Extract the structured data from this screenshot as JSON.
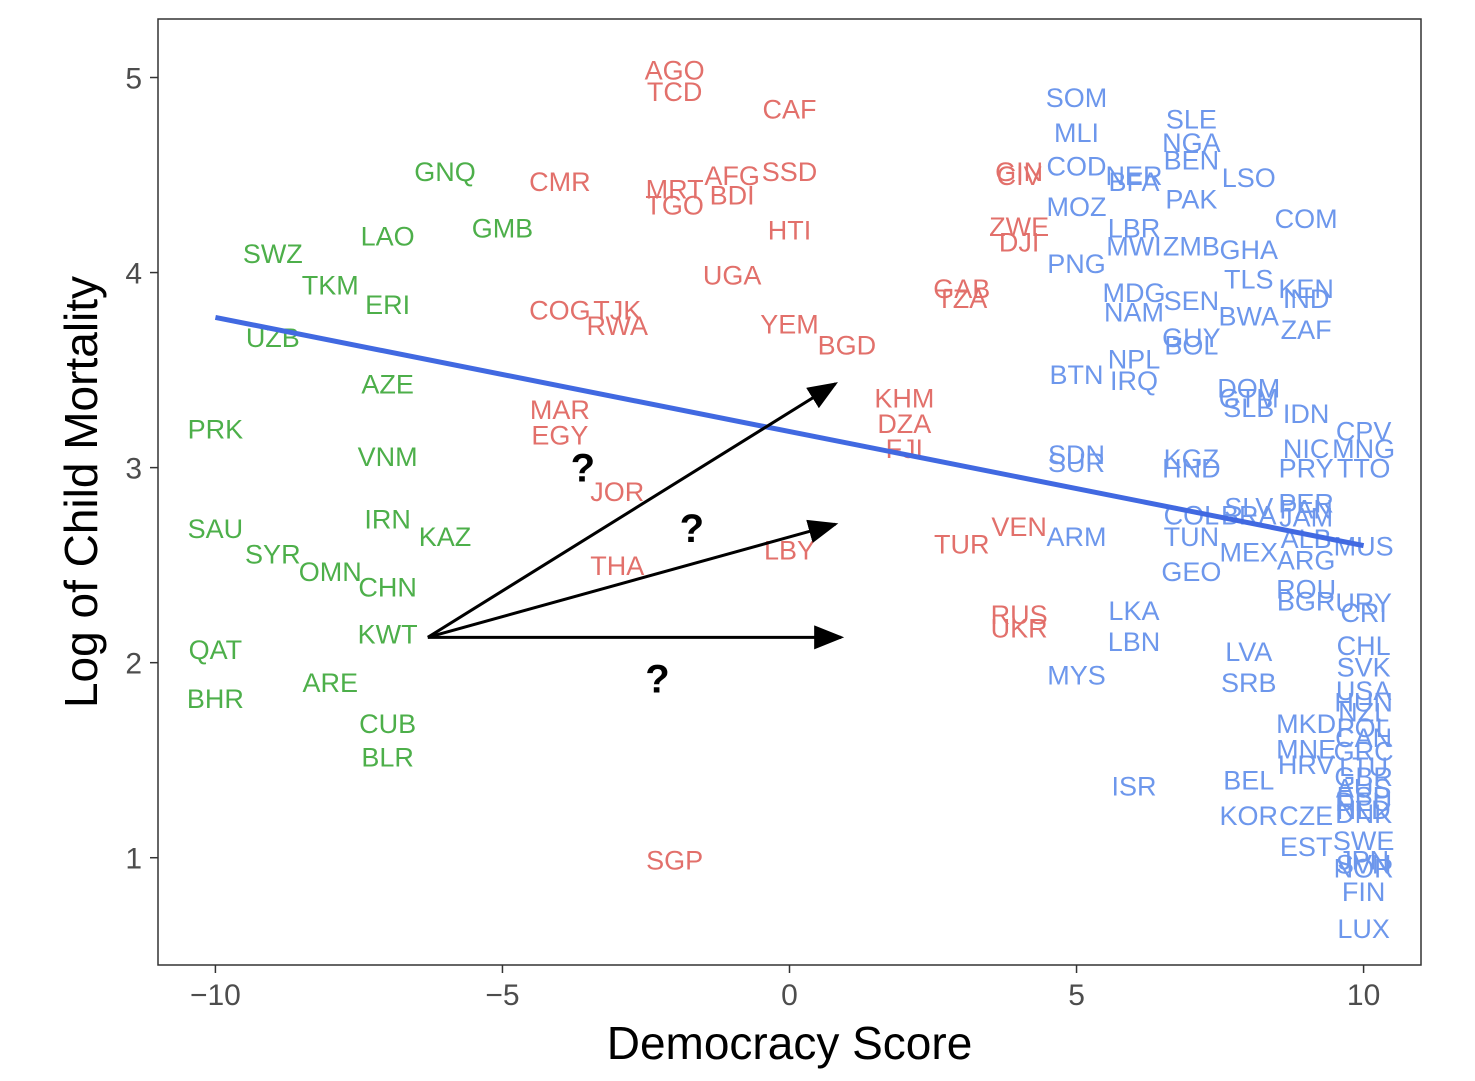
{
  "chart_data": {
    "type": "scatter",
    "xlabel": "Democracy Score",
    "ylabel": "Log of Child Mortality",
    "xlim": [
      -11,
      11
    ],
    "ylim": [
      0.45,
      5.3
    ],
    "xticks": [
      -10,
      -5,
      0,
      5,
      10
    ],
    "xtick_labels": [
      "−10",
      "−5",
      "0",
      "5",
      "10"
    ],
    "yticks": [
      1,
      2,
      3,
      4,
      5
    ],
    "ytick_labels": [
      "1",
      "2",
      "3",
      "4",
      "5"
    ],
    "grid": false,
    "colors": {
      "autocracy": "#4daf4a",
      "anocracy": "#e2706b",
      "democracy": "#6d97ec",
      "trend": "#4169e1",
      "arrow": "#000000"
    },
    "series": [
      {
        "group": "autocracy",
        "points": [
          {
            "label": "GNQ",
            "x": -6,
            "y": 4.52
          },
          {
            "label": "GMB",
            "x": -5,
            "y": 4.23
          },
          {
            "label": "LAO",
            "x": -7,
            "y": 4.19
          },
          {
            "label": "SWZ",
            "x": -9,
            "y": 4.1
          },
          {
            "label": "TKM",
            "x": -8,
            "y": 3.94
          },
          {
            "label": "ERI",
            "x": -7,
            "y": 3.84
          },
          {
            "label": "UZB",
            "x": -9,
            "y": 3.67
          },
          {
            "label": "AZE",
            "x": -7,
            "y": 3.43
          },
          {
            "label": "PRK",
            "x": -10,
            "y": 3.2
          },
          {
            "label": "VNM",
            "x": -7,
            "y": 3.06
          },
          {
            "label": "IRN",
            "x": -7,
            "y": 2.74
          },
          {
            "label": "KAZ",
            "x": -6,
            "y": 2.65
          },
          {
            "label": "SAU",
            "x": -10,
            "y": 2.69
          },
          {
            "label": "SYR",
            "x": -9,
            "y": 2.56
          },
          {
            "label": "OMN",
            "x": -8,
            "y": 2.47
          },
          {
            "label": "CHN",
            "x": -7,
            "y": 2.39
          },
          {
            "label": "KWT",
            "x": -7,
            "y": 2.15
          },
          {
            "label": "QAT",
            "x": -10,
            "y": 2.07
          },
          {
            "label": "ARE",
            "x": -8,
            "y": 1.9
          },
          {
            "label": "BHR",
            "x": -10,
            "y": 1.82
          },
          {
            "label": "CUB",
            "x": -7,
            "y": 1.69
          },
          {
            "label": "BLR",
            "x": -7,
            "y": 1.52
          }
        ]
      },
      {
        "group": "anocracy",
        "points": [
          {
            "label": "AGO",
            "x": -2,
            "y": 5.04
          },
          {
            "label": "TCD",
            "x": -2,
            "y": 4.93
          },
          {
            "label": "CAF",
            "x": 0,
            "y": 4.84
          },
          {
            "label": "CMR",
            "x": -4,
            "y": 4.47
          },
          {
            "label": "MRT",
            "x": -2,
            "y": 4.43
          },
          {
            "label": "AFG",
            "x": -1,
            "y": 4.5
          },
          {
            "label": "SSD",
            "x": 0,
            "y": 4.52
          },
          {
            "label": "BDI",
            "x": -1,
            "y": 4.4
          },
          {
            "label": "TGO",
            "x": -2,
            "y": 4.35
          },
          {
            "label": "HTI",
            "x": 0,
            "y": 4.22
          },
          {
            "label": "UGA",
            "x": -1,
            "y": 3.99
          },
          {
            "label": "COG",
            "x": -4,
            "y": 3.81
          },
          {
            "label": "TJK",
            "x": -3,
            "y": 3.81
          },
          {
            "label": "RWA",
            "x": -3,
            "y": 3.73
          },
          {
            "label": "YEM",
            "x": 0,
            "y": 3.74
          },
          {
            "label": "BGD",
            "x": 1,
            "y": 3.63
          },
          {
            "label": "MAR",
            "x": -4,
            "y": 3.3
          },
          {
            "label": "EGY",
            "x": -4,
            "y": 3.17
          },
          {
            "label": "JOR",
            "x": -3,
            "y": 2.88
          },
          {
            "label": "THA",
            "x": -3,
            "y": 2.5
          },
          {
            "label": "LBY",
            "x": 0,
            "y": 2.58
          },
          {
            "label": "SGP",
            "x": -2,
            "y": 0.99
          },
          {
            "label": "KHM",
            "x": 2,
            "y": 3.36
          },
          {
            "label": "DZA",
            "x": 2,
            "y": 3.23
          },
          {
            "label": "FJI",
            "x": 2,
            "y": 3.1
          },
          {
            "label": "GIN",
            "x": 4,
            "y": 4.52
          },
          {
            "label": "CIV",
            "x": 4,
            "y": 4.5
          },
          {
            "label": "ZWE",
            "x": 4,
            "y": 4.24
          },
          {
            "label": "DJI",
            "x": 4,
            "y": 4.16
          },
          {
            "label": "GAB",
            "x": 3,
            "y": 3.92
          },
          {
            "label": "TZA",
            "x": 3,
            "y": 3.87
          },
          {
            "label": "TUR",
            "x": 3,
            "y": 2.61
          },
          {
            "label": "VEN",
            "x": 4,
            "y": 2.7
          },
          {
            "label": "RUS",
            "x": 4,
            "y": 2.25
          },
          {
            "label": "UKR",
            "x": 4,
            "y": 2.18
          }
        ]
      },
      {
        "group": "democracy",
        "points": [
          {
            "label": "SOM",
            "x": 5,
            "y": 4.9
          },
          {
            "label": "MLI",
            "x": 5,
            "y": 4.72
          },
          {
            "label": "COD",
            "x": 5,
            "y": 4.55
          },
          {
            "label": "NER",
            "x": 6,
            "y": 4.5
          },
          {
            "label": "BFA",
            "x": 6,
            "y": 4.47
          },
          {
            "label": "SLE",
            "x": 7,
            "y": 4.79
          },
          {
            "label": "NGA",
            "x": 7,
            "y": 4.67
          },
          {
            "label": "BEN",
            "x": 7,
            "y": 4.58
          },
          {
            "label": "LSO",
            "x": 8,
            "y": 4.49
          },
          {
            "label": "PAK",
            "x": 7,
            "y": 4.38
          },
          {
            "label": "MOZ",
            "x": 5,
            "y": 4.34
          },
          {
            "label": "COM",
            "x": 9,
            "y": 4.28
          },
          {
            "label": "LBR",
            "x": 6,
            "y": 4.23
          },
          {
            "label": "MWI",
            "x": 6,
            "y": 4.14
          },
          {
            "label": "ZMB",
            "x": 7,
            "y": 4.14
          },
          {
            "label": "GHA",
            "x": 8,
            "y": 4.12
          },
          {
            "label": "PNG",
            "x": 5,
            "y": 4.05
          },
          {
            "label": "TLS",
            "x": 8,
            "y": 3.97
          },
          {
            "label": "KEN",
            "x": 9,
            "y": 3.92
          },
          {
            "label": "IND",
            "x": 9,
            "y": 3.87
          },
          {
            "label": "MDG",
            "x": 6,
            "y": 3.9
          },
          {
            "label": "SEN",
            "x": 7,
            "y": 3.86
          },
          {
            "label": "NAM",
            "x": 6,
            "y": 3.8
          },
          {
            "label": "BWA",
            "x": 8,
            "y": 3.78
          },
          {
            "label": "ZAF",
            "x": 9,
            "y": 3.71
          },
          {
            "label": "GUY",
            "x": 7,
            "y": 3.67
          },
          {
            "label": "BOL",
            "x": 7,
            "y": 3.63
          },
          {
            "label": "NPL",
            "x": 6,
            "y": 3.56
          },
          {
            "label": "BTN",
            "x": 5,
            "y": 3.48
          },
          {
            "label": "IRQ",
            "x": 6,
            "y": 3.45
          },
          {
            "label": "DOM",
            "x": 8,
            "y": 3.41
          },
          {
            "label": "GTM",
            "x": 8,
            "y": 3.36
          },
          {
            "label": "SLB",
            "x": 8,
            "y": 3.31
          },
          {
            "label": "IDN",
            "x": 9,
            "y": 3.28
          },
          {
            "label": "CPV",
            "x": 10,
            "y": 3.19
          },
          {
            "label": "NIC",
            "x": 9,
            "y": 3.1
          },
          {
            "label": "MNG",
            "x": 10,
            "y": 3.1
          },
          {
            "label": "SDN",
            "x": 5,
            "y": 3.07
          },
          {
            "label": "SUR",
            "x": 5,
            "y": 3.03
          },
          {
            "label": "KGZ",
            "x": 7,
            "y": 3.05
          },
          {
            "label": "HND",
            "x": 7,
            "y": 3.0
          },
          {
            "label": "PRY",
            "x": 9,
            "y": 3.0
          },
          {
            "label": "TTO",
            "x": 10,
            "y": 3.0
          },
          {
            "label": "SLV",
            "x": 8,
            "y": 2.8
          },
          {
            "label": "PER",
            "x": 9,
            "y": 2.82
          },
          {
            "label": "COL",
            "x": 7,
            "y": 2.76
          },
          {
            "label": "BRA",
            "x": 8,
            "y": 2.76
          },
          {
            "label": "PAN",
            "x": 9,
            "y": 2.79
          },
          {
            "label": "JAM",
            "x": 9,
            "y": 2.75
          },
          {
            "label": "ARM",
            "x": 5,
            "y": 2.65
          },
          {
            "label": "TUN",
            "x": 7,
            "y": 2.65
          },
          {
            "label": "ALB",
            "x": 9,
            "y": 2.64
          },
          {
            "label": "MUS",
            "x": 10,
            "y": 2.6
          },
          {
            "label": "MEX",
            "x": 8,
            "y": 2.57
          },
          {
            "label": "ARG",
            "x": 9,
            "y": 2.53
          },
          {
            "label": "GEO",
            "x": 7,
            "y": 2.47
          },
          {
            "label": "ROU",
            "x": 9,
            "y": 2.38
          },
          {
            "label": "BGR",
            "x": 9,
            "y": 2.32
          },
          {
            "label": "URY",
            "x": 10,
            "y": 2.31
          },
          {
            "label": "CRI",
            "x": 10,
            "y": 2.26
          },
          {
            "label": "LKA",
            "x": 6,
            "y": 2.27
          },
          {
            "label": "LBN",
            "x": 6,
            "y": 2.11
          },
          {
            "label": "LVA",
            "x": 8,
            "y": 2.06
          },
          {
            "label": "CHL",
            "x": 10,
            "y": 2.09
          },
          {
            "label": "SVK",
            "x": 10,
            "y": 1.98
          },
          {
            "label": "MYS",
            "x": 5,
            "y": 1.94
          },
          {
            "label": "SRB",
            "x": 8,
            "y": 1.9
          },
          {
            "label": "USA",
            "x": 10,
            "y": 1.86
          },
          {
            "label": "HUN",
            "x": 10,
            "y": 1.8
          },
          {
            "label": "NZL",
            "x": 10,
            "y": 1.75
          },
          {
            "label": "MKD",
            "x": 9,
            "y": 1.69
          },
          {
            "label": "POL",
            "x": 10,
            "y": 1.67
          },
          {
            "label": "CAN",
            "x": 10,
            "y": 1.62
          },
          {
            "label": "MNE",
            "x": 9,
            "y": 1.56
          },
          {
            "label": "GRC",
            "x": 10,
            "y": 1.55
          },
          {
            "label": "HRV",
            "x": 9,
            "y": 1.48
          },
          {
            "label": "LTU",
            "x": 10,
            "y": 1.47
          },
          {
            "label": "GBR",
            "x": 10,
            "y": 1.42
          },
          {
            "label": "ISR",
            "x": 6,
            "y": 1.37
          },
          {
            "label": "BEL",
            "x": 8,
            "y": 1.4
          },
          {
            "label": "AUS",
            "x": 10,
            "y": 1.36
          },
          {
            "label": "ESP",
            "x": 10,
            "y": 1.32
          },
          {
            "label": "DEU",
            "x": 10,
            "y": 1.29
          },
          {
            "label": "NLD",
            "x": 10,
            "y": 1.25
          },
          {
            "label": "DNK",
            "x": 10,
            "y": 1.23
          },
          {
            "label": "KOR",
            "x": 8,
            "y": 1.22
          },
          {
            "label": "CZE",
            "x": 9,
            "y": 1.22
          },
          {
            "label": "SWE",
            "x": 10,
            "y": 1.09
          },
          {
            "label": "EST",
            "x": 9,
            "y": 1.06
          },
          {
            "label": "JPN",
            "x": 10,
            "y": 0.99
          },
          {
            "label": "SVN",
            "x": 10,
            "y": 0.97
          },
          {
            "label": "NOR",
            "x": 10,
            "y": 0.95
          },
          {
            "label": "FIN",
            "x": 10,
            "y": 0.83
          },
          {
            "label": "LUX",
            "x": 10,
            "y": 0.64
          }
        ]
      }
    ],
    "trend_line": {
      "x": [
        -10,
        10
      ],
      "y": [
        3.77,
        2.6
      ]
    },
    "arrows": [
      {
        "from": [
          -6.3,
          2.13
        ],
        "to": [
          0.8,
          3.43
        ]
      },
      {
        "from": [
          -6.3,
          2.13
        ],
        "to": [
          0.8,
          2.71
        ]
      },
      {
        "from": [
          -6.3,
          2.13
        ],
        "to": [
          0.9,
          2.13
        ]
      }
    ],
    "annotations": [
      {
        "text": "?",
        "x": -3.6,
        "y": 3.0
      },
      {
        "text": "?",
        "x": -1.7,
        "y": 2.69
      },
      {
        "text": "?",
        "x": -2.3,
        "y": 1.92
      }
    ]
  }
}
